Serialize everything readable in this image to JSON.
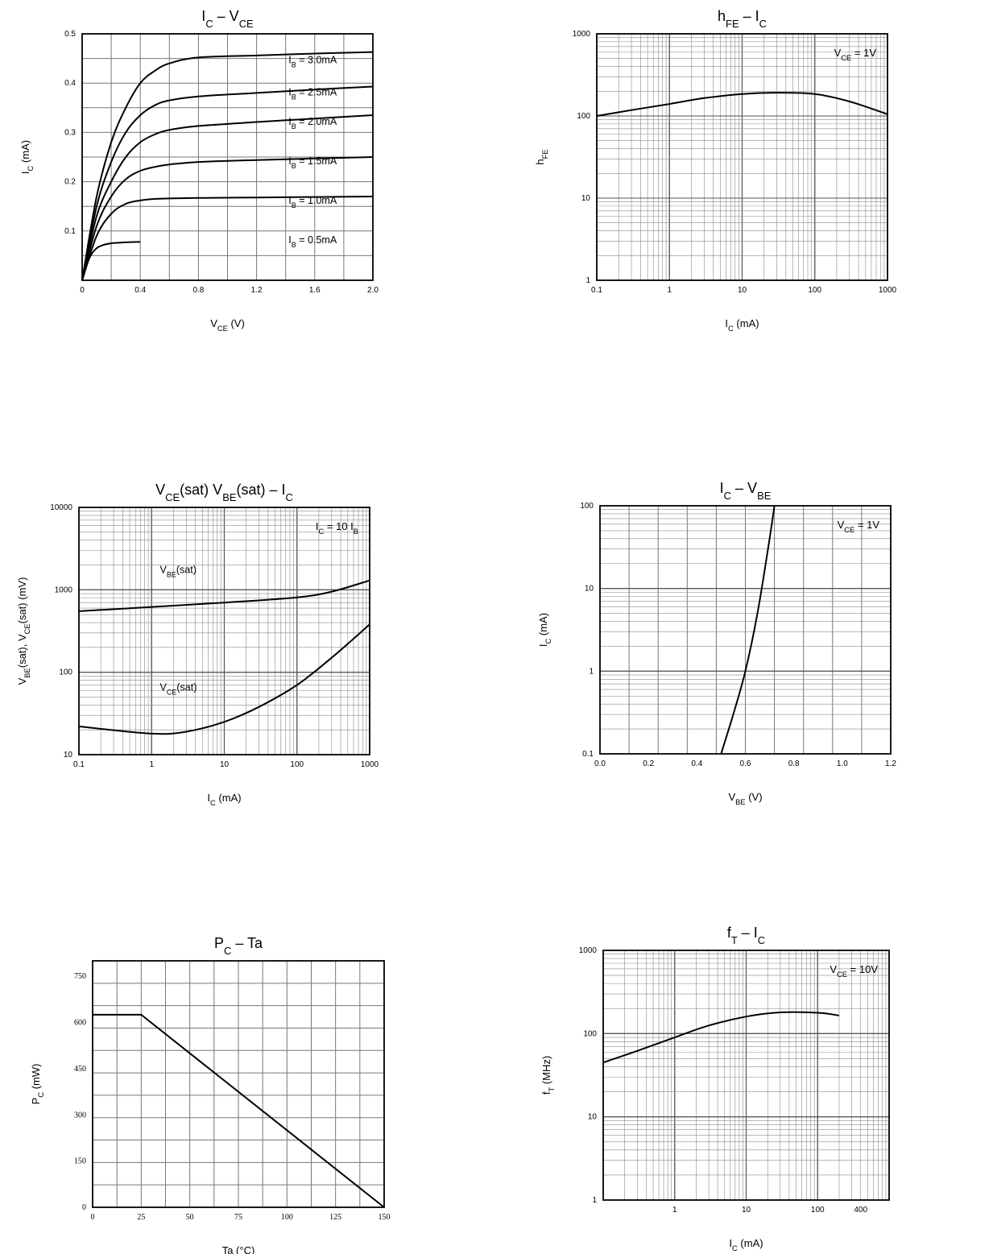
{
  "colors": {
    "curve": "#000000",
    "grid": "#8a8a8a",
    "frame": "#000000"
  },
  "chart_data": [
    {
      "id": "ic_vce",
      "type": "line",
      "title": "I<sub>C</sub> – V<sub>CE</sub>",
      "title_text": "IC - VCE",
      "xlabel": "VCE (V)",
      "ylabel": "IC (mA)",
      "xscale": "linear",
      "yscale": "linear",
      "xlim": [
        0,
        2.0
      ],
      "ylim": [
        0,
        0.5
      ],
      "xticks": [
        "0",
        "0.4",
        "0.8",
        "1.2",
        "1.6",
        "2.0"
      ],
      "yticks": [
        "0.1",
        "0.2",
        "0.3",
        "0.4",
        "0.5"
      ],
      "grid": true,
      "series": [
        {
          "name": "IB = 3.0mA",
          "x": [
            0,
            0.1,
            0.2,
            0.3,
            0.4,
            0.5,
            0.6,
            0.8,
            1.2,
            1.6,
            2.0
          ],
          "y": [
            0,
            0.17,
            0.28,
            0.35,
            0.4,
            0.425,
            0.44,
            0.452,
            0.456,
            0.46,
            0.463
          ]
        },
        {
          "name": "IB = 2.5mA",
          "x": [
            0,
            0.1,
            0.2,
            0.3,
            0.4,
            0.5,
            0.6,
            0.8,
            1.2,
            1.6,
            2.0
          ],
          "y": [
            0,
            0.15,
            0.24,
            0.3,
            0.335,
            0.355,
            0.365,
            0.373,
            0.38,
            0.387,
            0.393
          ]
        },
        {
          "name": "IB = 2.0mA",
          "x": [
            0,
            0.1,
            0.2,
            0.3,
            0.4,
            0.5,
            0.6,
            0.8,
            1.2,
            1.6,
            2.0
          ],
          "y": [
            0,
            0.13,
            0.2,
            0.25,
            0.28,
            0.296,
            0.305,
            0.313,
            0.321,
            0.328,
            0.335
          ]
        },
        {
          "name": "IB = 1.5mA",
          "x": [
            0,
            0.1,
            0.2,
            0.3,
            0.4,
            0.5,
            0.6,
            0.8,
            1.2,
            1.6,
            2.0
          ],
          "y": [
            0,
            0.11,
            0.17,
            0.205,
            0.222,
            0.23,
            0.235,
            0.24,
            0.244,
            0.247,
            0.25
          ]
        },
        {
          "name": "IB = 1.0mA",
          "x": [
            0,
            0.1,
            0.2,
            0.3,
            0.4,
            0.5,
            0.6,
            0.8,
            1.2,
            1.6,
            2.0
          ],
          "y": [
            0,
            0.09,
            0.135,
            0.155,
            0.162,
            0.165,
            0.166,
            0.167,
            0.168,
            0.169,
            0.17
          ]
        },
        {
          "name": "IB = 0.5mA",
          "x": [
            0,
            0.05,
            0.1,
            0.15,
            0.2,
            0.3,
            0.4
          ],
          "y": [
            0,
            0.045,
            0.065,
            0.072,
            0.075,
            0.077,
            0.078
          ]
        }
      ],
      "curve_labels": [
        {
          "text": "IB = 3.0mA",
          "x": 1.42,
          "y": 0.44
        },
        {
          "text": "IB = 2.5mA",
          "x": 1.42,
          "y": 0.375
        },
        {
          "text": "IB = 2.0mA",
          "x": 1.42,
          "y": 0.315
        },
        {
          "text": "IB = 1.5mA",
          "x": 1.42,
          "y": 0.235
        },
        {
          "text": "IB = 1.0mA",
          "x": 1.42,
          "y": 0.155
        },
        {
          "text": "IB = 0.5mA",
          "x": 1.42,
          "y": 0.075
        }
      ]
    },
    {
      "id": "hfe_ic",
      "type": "line",
      "title": "h<sub>FE</sub> – I<sub>C</sub>",
      "title_text": "hFE - IC",
      "xlabel": "IC (mA)",
      "ylabel": "hFE",
      "xscale": "log",
      "yscale": "log",
      "xlim": [
        0.1,
        1000
      ],
      "ylim": [
        1,
        1000
      ],
      "xticks": [
        "0.1",
        "1",
        "10",
        "100",
        "1000"
      ],
      "yticks": [
        "1",
        "10",
        "100",
        "1000"
      ],
      "grid": true,
      "annotation": "VCE = 1V",
      "series": [
        {
          "name": "",
          "x": [
            0.1,
            0.3,
            1,
            3,
            10,
            30,
            100,
            300,
            1000
          ],
          "y": [
            100,
            118,
            140,
            165,
            185,
            192,
            185,
            150,
            105
          ]
        }
      ]
    },
    {
      "id": "vsat_ic",
      "type": "line",
      "title": "V<sub>CE</sub>(sat) V<sub>BE</sub>(sat) – I<sub>C</sub>",
      "title_text": "VCE(sat) VBE(sat) - IC",
      "xlabel": "IC (mA)",
      "ylabel": "VBE(sat), VCE(sat) (mV)",
      "xscale": "log",
      "yscale": "log",
      "xlim": [
        0.1,
        1000
      ],
      "ylim": [
        10,
        10000
      ],
      "xticks": [
        "0.1",
        "1",
        "10",
        "100",
        "1000"
      ],
      "yticks": [
        "10",
        "100",
        "1000",
        "10000"
      ],
      "grid": true,
      "annotation": "IC = 10 IB",
      "series": [
        {
          "name": "VBE(sat)",
          "x": [
            0.1,
            1,
            10,
            100,
            300,
            1000
          ],
          "y": [
            550,
            620,
            700,
            810,
            950,
            1300
          ]
        },
        {
          "name": "VCE(sat)",
          "x": [
            0.1,
            1,
            3,
            10,
            30,
            100,
            300,
            1000
          ],
          "y": [
            22,
            18,
            19,
            25,
            38,
            70,
            150,
            380
          ]
        }
      ],
      "curve_labels": [
        {
          "text": "VBE(sat)",
          "x": 1.3,
          "y": 1600
        },
        {
          "text": "VCE(sat)",
          "x": 1.3,
          "y": 60
        }
      ]
    },
    {
      "id": "ic_vbe",
      "type": "line",
      "title": "I<sub>C</sub> – V<sub>BE</sub>",
      "title_text": "IC - VBE",
      "xlabel": "VBE (V)",
      "ylabel": "IC (mA)",
      "xscale": "linear",
      "yscale": "log",
      "xlim": [
        0,
        1.2
      ],
      "ylim": [
        0.1,
        100
      ],
      "xticks": [
        "0.0",
        "0.2",
        "0.4",
        "0.6",
        "0.8",
        "1.0",
        "1.2"
      ],
      "yticks": [
        "0.1",
        "1",
        "10",
        "100"
      ],
      "grid": true,
      "annotation": "VCE = 1V",
      "series": [
        {
          "name": "",
          "x": [
            0.5,
            0.55,
            0.6,
            0.65,
            0.7,
            0.72
          ],
          "y": [
            0.1,
            0.3,
            1,
            5,
            40,
            100
          ]
        }
      ]
    },
    {
      "id": "pc_ta",
      "type": "line",
      "title": "P<sub>C</sub> – Ta",
      "title_text": "PC - Ta",
      "xlabel": "Ta (°C)",
      "ylabel": "PC (mW)",
      "xscale": "linear",
      "yscale": "linear",
      "xlim": [
        0,
        150
      ],
      "ylim": [
        0,
        800
      ],
      "xticks": [
        "0",
        "25",
        "50",
        "75",
        "100",
        "125",
        "150"
      ],
      "yticks": [
        "0",
        "150",
        "300",
        "450",
        "600",
        "750"
      ],
      "grid": true,
      "series": [
        {
          "name": "",
          "x": [
            0,
            25,
            150
          ],
          "y": [
            625,
            625,
            0
          ]
        }
      ]
    },
    {
      "id": "ft_ic",
      "type": "line",
      "title": "f<sub>T</sub> – I<sub>C</sub>",
      "title_text": "fT - IC",
      "xlabel": "IC (mA)",
      "ylabel": "fT (MHz)",
      "xscale": "log",
      "yscale": "log",
      "xlim": [
        0.1,
        1000
      ],
      "ylim": [
        1,
        1000
      ],
      "xticks": [
        "1",
        "10",
        "100",
        "400"
      ],
      "xtick_values": [
        1,
        10,
        100,
        400
      ],
      "yticks": [
        "1",
        "10",
        "100",
        "1000"
      ],
      "grid": true,
      "annotation": "VCE = 10V",
      "series": [
        {
          "name": "",
          "x": [
            0.1,
            0.3,
            1,
            3,
            10,
            30,
            100,
            200
          ],
          "y": [
            45,
            62,
            90,
            125,
            160,
            180,
            178,
            165
          ]
        }
      ]
    }
  ]
}
